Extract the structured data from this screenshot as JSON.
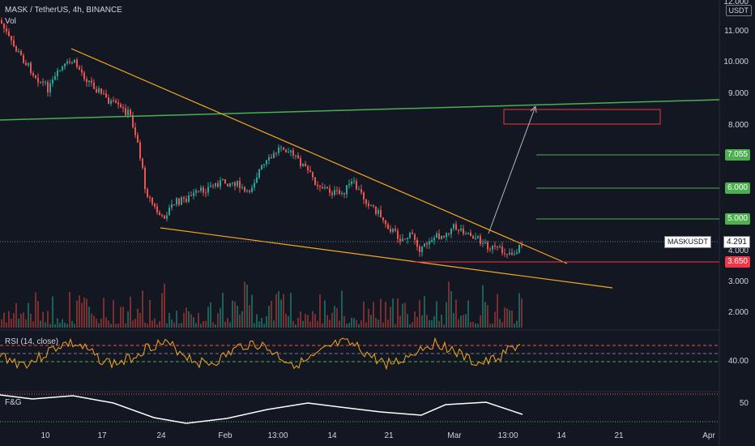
{
  "header": {
    "symbol_line": "MASK / TetherUS, 4h, BINANCE",
    "volume_label": "Vol"
  },
  "price_axis": {
    "currency_label": "USDT",
    "labels": [
      "12.000",
      "11.000",
      "10.000",
      "9.000",
      "8.000",
      "4.000",
      "3.000",
      "2.000"
    ]
  },
  "price_tags": [
    {
      "label": "7.055",
      "color": "#4caf50"
    },
    {
      "label": "6.000",
      "color": "#4caf50"
    },
    {
      "label": "5.000",
      "color": "#4caf50"
    },
    {
      "label": "3.650",
      "color": "#f23645"
    }
  ],
  "last_price": {
    "symbol": "MASKUSDT",
    "value": "4.291"
  },
  "time_axis": [
    "10",
    "17",
    "24",
    "Feb",
    "13:00",
    "14",
    "21",
    "Mar",
    "13:00",
    "14",
    "21",
    "Apr"
  ],
  "rsi_pane": {
    "label": "RSI (14, close)",
    "axis_label": "40.00"
  },
  "fg_pane": {
    "label": "F&G",
    "axis_label": "50"
  },
  "colors": {
    "background": "#131722",
    "up": "#26a69a",
    "down": "#ef5350",
    "trend_line": "#f5a623",
    "resistance_line": "#4caf50",
    "target_box": "#f23645",
    "rsi_line": "#f5a623"
  }
}
